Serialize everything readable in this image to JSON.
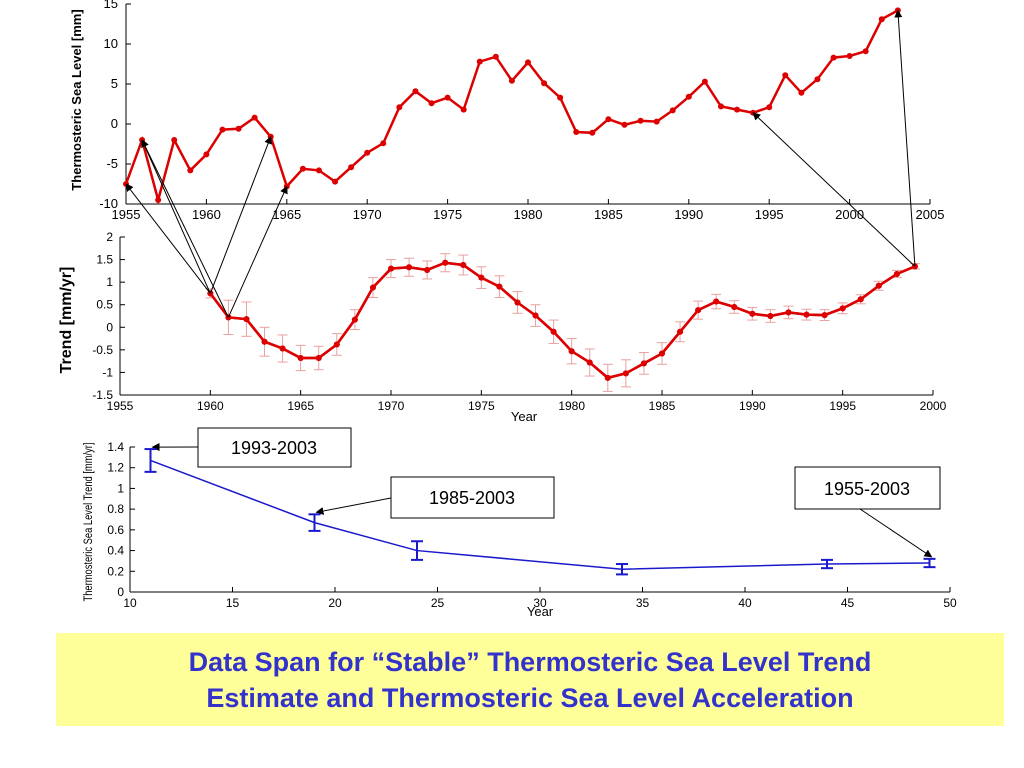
{
  "caption": {
    "line1": "Data Span for “Stable” Thermosteric Sea Level Trend",
    "line2": "Estimate and Thermosteric Sea Level Acceleration",
    "background": "#ffff99",
    "text_color": "#3333cc"
  },
  "chart_data": [
    {
      "type": "line",
      "title": "",
      "xlabel": "",
      "ylabel": "Thermosteric Sea Level [mm]",
      "xlim": [
        1955,
        2005
      ],
      "ylim": [
        -10,
        15
      ],
      "xticks": [
        1955,
        1960,
        1965,
        1970,
        1975,
        1980,
        1985,
        1990,
        1995,
        2000,
        2005
      ],
      "yticks": [
        -10,
        -5,
        0,
        5,
        10,
        15
      ],
      "grid": false,
      "color": "#dd0000",
      "series": [
        {
          "x": [
            1955,
            1956,
            1957,
            1958,
            1959,
            1960,
            1961,
            1962,
            1963,
            1964,
            1965,
            1966,
            1967,
            1968,
            1969,
            1970,
            1971,
            1972,
            1973,
            1974,
            1975,
            1976,
            1977,
            1978,
            1979,
            1980,
            1981,
            1982,
            1983,
            1984,
            1985,
            1986,
            1987,
            1988,
            1989,
            1990,
            1991,
            1992,
            1993,
            1994,
            1995,
            1996,
            1997,
            1998,
            1999,
            2000,
            2001,
            2002,
            2003
          ],
          "values": [
            -7.5,
            -2.0,
            -9.5,
            -2.0,
            -5.8,
            -3.8,
            -0.7,
            -0.6,
            0.8,
            -1.6,
            -7.8,
            -5.6,
            -5.8,
            -7.2,
            -5.4,
            -3.6,
            -2.4,
            2.1,
            4.1,
            2.6,
            3.3,
            1.8,
            7.8,
            8.4,
            5.4,
            7.7,
            5.1,
            3.3,
            -1.0,
            -1.1,
            0.6,
            -0.1,
            0.4,
            0.3,
            1.7,
            3.4,
            5.3,
            2.2,
            1.8,
            1.4,
            2.1,
            6.1,
            3.9,
            5.6,
            8.3,
            8.5,
            9.1,
            13.1,
            14.2
          ]
        }
      ]
    },
    {
      "type": "line",
      "title": "",
      "xlabel": "Year",
      "ylabel": "Trend [mm/yr]",
      "xlim": [
        1955,
        2000
      ],
      "ylim": [
        -1.5,
        2
      ],
      "xticks": [
        1955,
        1960,
        1965,
        1970,
        1975,
        1980,
        1985,
        1990,
        1995,
        2000
      ],
      "yticks": [
        -1.5,
        -1,
        -0.5,
        0,
        0.5,
        1,
        1.5,
        2
      ],
      "ytick_labels": [
        "-1.5",
        "-1",
        "-0.5",
        "0",
        "0.5",
        "1",
        "1.5",
        "2"
      ],
      "grid": false,
      "color": "#dd0000",
      "errorbar_color": "#e8a0a0",
      "series": [
        {
          "x": [
            1960,
            1961,
            1962,
            1963,
            1964,
            1965,
            1966,
            1967,
            1968,
            1969,
            1970,
            1971,
            1972,
            1973,
            1974,
            1975,
            1976,
            1977,
            1978,
            1979,
            1980,
            1981,
            1982,
            1983,
            1984,
            1985,
            1986,
            1987,
            1988,
            1989,
            1990,
            1991,
            1992,
            1993,
            1994,
            1995,
            1996,
            1997,
            1998,
            1999
          ],
          "values": [
            0.75,
            0.22,
            0.18,
            -0.32,
            -0.47,
            -0.68,
            -0.68,
            -0.38,
            0.17,
            0.88,
            1.3,
            1.33,
            1.27,
            1.43,
            1.38,
            1.1,
            0.9,
            0.55,
            0.26,
            -0.1,
            -0.53,
            -0.78,
            -1.12,
            -1.02,
            -0.8,
            -0.58,
            -0.1,
            0.38,
            0.57,
            0.45,
            0.3,
            0.25,
            0.33,
            0.28,
            0.27,
            0.42,
            0.62,
            0.92,
            1.18,
            1.35
          ],
          "errors": [
            0.1,
            0.38,
            0.38,
            0.32,
            0.3,
            0.28,
            0.26,
            0.24,
            0.22,
            0.22,
            0.2,
            0.2,
            0.2,
            0.2,
            0.22,
            0.24,
            0.24,
            0.24,
            0.24,
            0.26,
            0.28,
            0.3,
            0.3,
            0.3,
            0.24,
            0.24,
            0.22,
            0.2,
            0.16,
            0.14,
            0.14,
            0.14,
            0.14,
            0.12,
            0.12,
            0.12,
            0.1,
            0.1,
            0.08,
            0.06
          ]
        }
      ]
    },
    {
      "type": "line",
      "title": "",
      "xlabel": "Year",
      "ylabel": "Thermosteric Sea Level Trend [mm/yr]",
      "xlim": [
        10,
        50
      ],
      "ylim": [
        0,
        1.4
      ],
      "xticks": [
        10,
        15,
        20,
        25,
        30,
        35,
        40,
        45,
        50
      ],
      "yticks": [
        0,
        0.2,
        0.4,
        0.6,
        0.8,
        1,
        1.2,
        1.4
      ],
      "grid": false,
      "color": "#1a1acc",
      "series": [
        {
          "x": [
            11,
            19,
            24,
            34,
            44,
            49
          ],
          "values": [
            1.27,
            0.67,
            0.4,
            0.22,
            0.27,
            0.28
          ],
          "errors": [
            0.11,
            0.08,
            0.09,
            0.05,
            0.04,
            0.04
          ]
        }
      ],
      "annotations": [
        "1993-2003",
        "1985-2003",
        "1955-2003"
      ]
    }
  ]
}
